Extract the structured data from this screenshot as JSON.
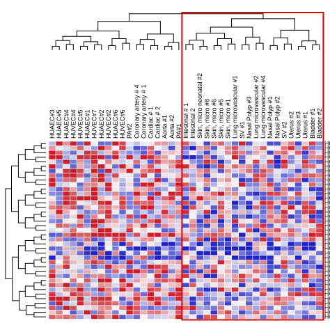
{
  "chart_data": {
    "type": "heatmap",
    "title": "",
    "column_labels": [
      "HUAEC#3",
      "HUAEC#5",
      "HUAEC#4",
      "HUVEC#4",
      "HUVEC#5",
      "HUAEC#1",
      "HUVEC#7",
      "HUAEC#2",
      "HUVEC#2",
      "HUAEC#6",
      "HUVEC#6",
      "PA#2",
      "Coronary artery # 4",
      "Coronary artery # 1",
      "Cardiac # 1",
      "Cardiac # 2",
      "Aorta #1",
      "Aorta #2",
      "PA#1",
      "Intestinal # 1",
      "Intestinal 2",
      "Skin, micro neonatal #2",
      "Skin, micro #8",
      "Skin, micro #6",
      "Skin, micro #5",
      "Skin, micro #1",
      "Lung microvascular #1",
      "SV #1",
      "Nasal Polyp #3",
      "Lung microvascular #2",
      "Lung microvascular #4",
      "Nasal Polyp #1",
      "Nasal Polyp #2",
      "SV #2",
      "Uterus #2",
      "Uterus #3",
      "Uterus #1",
      "Bladder #1",
      "Bladder #2"
    ],
    "row_labels": [
      "HOX",
      "HOX",
      "HOX",
      "HOX",
      "HOX",
      "HOX",
      "HOX",
      "HOX",
      "HOX",
      "HOX",
      "HOX",
      "HOX",
      "HOX",
      "HOX",
      "HOX",
      "HOX",
      "HOX",
      "HOX",
      "HOX",
      "HOX",
      "HOX",
      "HOX",
      "HOX",
      "HOX",
      "HOX",
      "HOX",
      "HOX",
      "HOX",
      "HOX",
      "HOX",
      "HOX",
      "HOX",
      "HOX",
      "HOX",
      "HOX",
      "HOX",
      "HOX",
      "HOX",
      "HOX"
    ],
    "highlight_columns": [
      19,
      38
    ],
    "color_scale": {
      "low": "#1e22c8",
      "mid": "#f4f4f4",
      "high": "#d01c28"
    },
    "seed": 7
  }
}
